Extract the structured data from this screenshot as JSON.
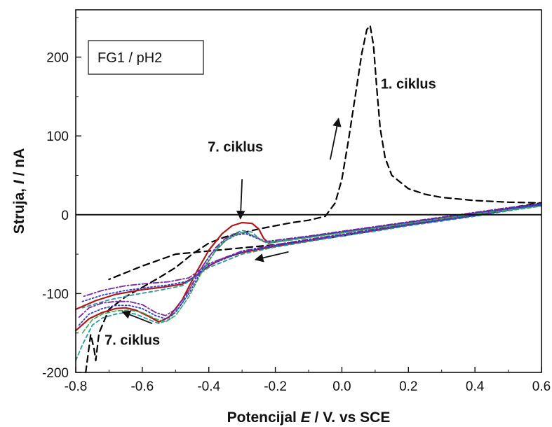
{
  "chart_data": {
    "type": "line",
    "xlabel_parts": [
      "Potencijal ",
      "E",
      " / V. vs SCE"
    ],
    "ylabel_parts": [
      "Struja, ",
      "I",
      " /  nA"
    ],
    "xlim": [
      -0.8,
      0.6
    ],
    "ylim": [
      -200,
      260
    ],
    "xticks": [
      -0.8,
      -0.6,
      -0.4,
      -0.2,
      0.0,
      0.2,
      0.4,
      0.6
    ],
    "xtick_labels": [
      "-0.8",
      "-0.6",
      "-0.4",
      "-0.2",
      "0.0",
      "0.2",
      "0.4",
      "0.6"
    ],
    "yticks": [
      -200,
      -100,
      0,
      100,
      200
    ],
    "ytick_labels": [
      "-200",
      "-100",
      "0",
      "100",
      "200"
    ],
    "zero_line": true,
    "legend_box": "FG1 / pH2",
    "annotations": [
      {
        "text": "1. ciklus",
        "x": 0.2,
        "y": 160
      },
      {
        "text": "7. ciklus",
        "x": -0.32,
        "y": 80
      },
      {
        "text": "7. ciklus",
        "x": -0.63,
        "y": -165
      }
    ],
    "arrows": [
      {
        "from": [
          -0.3,
          45
        ],
        "to": [
          -0.305,
          -5
        ]
      },
      {
        "from": [
          -0.035,
          70
        ],
        "to": [
          -0.01,
          122
        ]
      },
      {
        "from": [
          -0.16,
          -47
        ],
        "to": [
          -0.26,
          -57
        ]
      },
      {
        "from": [
          -0.57,
          -138
        ],
        "to": [
          -0.66,
          -123
        ]
      }
    ],
    "series": [
      {
        "color": "#000000",
        "dash": "9,6",
        "width": 2.2,
        "points": [
          [
            -0.77,
            -200
          ],
          [
            -0.755,
            -152
          ],
          [
            -0.745,
            -170
          ],
          [
            -0.74,
            -185
          ],
          [
            -0.73,
            -150
          ],
          [
            -0.7,
            -120
          ],
          [
            -0.65,
            -104
          ],
          [
            -0.6,
            -92
          ],
          [
            -0.55,
            -80
          ],
          [
            -0.5,
            -67
          ],
          [
            -0.45,
            -50
          ],
          [
            -0.4,
            -36
          ],
          [
            -0.35,
            -28
          ],
          [
            -0.3,
            -23
          ],
          [
            -0.25,
            -18
          ],
          [
            -0.2,
            -14
          ],
          [
            -0.15,
            -10
          ],
          [
            -0.1,
            -7
          ],
          [
            -0.05,
            -2
          ],
          [
            -0.02,
            15
          ],
          [
            0.0,
            45
          ],
          [
            0.02,
            95
          ],
          [
            0.04,
            150
          ],
          [
            0.06,
            205
          ],
          [
            0.075,
            235
          ],
          [
            0.085,
            240
          ],
          [
            0.095,
            215
          ],
          [
            0.105,
            160
          ],
          [
            0.115,
            110
          ],
          [
            0.13,
            72
          ],
          [
            0.15,
            50
          ],
          [
            0.2,
            33
          ],
          [
            0.25,
            26
          ],
          [
            0.3,
            22
          ],
          [
            0.4,
            18
          ],
          [
            0.5,
            16
          ],
          [
            0.6,
            15
          ],
          [
            0.55,
            12
          ],
          [
            0.5,
            8
          ],
          [
            0.4,
            2
          ],
          [
            0.3,
            -5
          ],
          [
            0.2,
            -12
          ],
          [
            0.1,
            -20
          ],
          [
            0.0,
            -27
          ],
          [
            -0.1,
            -33
          ],
          [
            -0.2,
            -38
          ],
          [
            -0.3,
            -42
          ],
          [
            -0.4,
            -46
          ],
          [
            -0.5,
            -50
          ],
          [
            -0.6,
            -65
          ],
          [
            -0.7,
            -82
          ]
        ]
      },
      {
        "color": "#b01818",
        "dash": "",
        "width": 2.2,
        "points": [
          [
            -0.8,
            -147
          ],
          [
            -0.76,
            -132
          ],
          [
            -0.72,
            -124
          ],
          [
            -0.68,
            -119
          ],
          [
            -0.65,
            -118
          ],
          [
            -0.62,
            -121
          ],
          [
            -0.58,
            -129
          ],
          [
            -0.55,
            -136
          ],
          [
            -0.52,
            -130
          ],
          [
            -0.48,
            -108
          ],
          [
            -0.44,
            -75
          ],
          [
            -0.4,
            -45
          ],
          [
            -0.36,
            -24
          ],
          [
            -0.33,
            -14
          ],
          [
            -0.3,
            -10
          ],
          [
            -0.27,
            -11
          ],
          [
            -0.25,
            -18
          ],
          [
            -0.235,
            -30
          ],
          [
            -0.22,
            -36
          ],
          [
            -0.18,
            -33
          ],
          [
            -0.1,
            -28
          ],
          [
            0.0,
            -22
          ],
          [
            0.1,
            -16
          ],
          [
            0.2,
            -10
          ],
          [
            0.3,
            -4
          ],
          [
            0.4,
            2
          ],
          [
            0.5,
            7
          ],
          [
            0.6,
            12
          ],
          [
            0.55,
            10
          ],
          [
            0.5,
            6
          ],
          [
            0.4,
            -1
          ],
          [
            0.3,
            -7
          ],
          [
            0.2,
            -13
          ],
          [
            0.1,
            -20
          ],
          [
            0.0,
            -26
          ],
          [
            -0.1,
            -33
          ],
          [
            -0.2,
            -40
          ],
          [
            -0.3,
            -48
          ],
          [
            -0.36,
            -56
          ],
          [
            -0.4,
            -65
          ],
          [
            -0.44,
            -78
          ],
          [
            -0.48,
            -88
          ],
          [
            -0.54,
            -92
          ],
          [
            -0.6,
            -95
          ],
          [
            -0.68,
            -101
          ],
          [
            -0.74,
            -109
          ],
          [
            -0.8,
            -120
          ]
        ]
      },
      {
        "color": "#2a9a9a",
        "dash": "5,4",
        "width": 1.8,
        "points": [
          [
            -0.8,
            -185
          ],
          [
            -0.78,
            -165
          ],
          [
            -0.75,
            -140
          ],
          [
            -0.72,
            -131
          ],
          [
            -0.68,
            -126
          ],
          [
            -0.65,
            -124
          ],
          [
            -0.62,
            -126
          ],
          [
            -0.58,
            -133
          ],
          [
            -0.55,
            -138
          ],
          [
            -0.52,
            -133
          ],
          [
            -0.48,
            -112
          ],
          [
            -0.44,
            -80
          ],
          [
            -0.4,
            -53
          ],
          [
            -0.36,
            -35
          ],
          [
            -0.33,
            -25
          ],
          [
            -0.3,
            -20
          ],
          [
            -0.27,
            -22
          ],
          [
            -0.25,
            -30
          ],
          [
            -0.22,
            -36
          ],
          [
            -0.1,
            -29
          ],
          [
            0.0,
            -23
          ],
          [
            0.1,
            -17
          ],
          [
            0.2,
            -11
          ],
          [
            0.3,
            -5
          ],
          [
            0.4,
            1
          ],
          [
            0.5,
            6
          ],
          [
            0.6,
            11
          ],
          [
            0.5,
            5
          ],
          [
            0.4,
            -2
          ],
          [
            0.3,
            -8
          ],
          [
            0.2,
            -14
          ],
          [
            0.1,
            -21
          ],
          [
            0.0,
            -27
          ],
          [
            -0.1,
            -34
          ],
          [
            -0.2,
            -41
          ],
          [
            -0.3,
            -50
          ],
          [
            -0.4,
            -67
          ],
          [
            -0.48,
            -90
          ],
          [
            -0.55,
            -96
          ],
          [
            -0.62,
            -101
          ],
          [
            -0.7,
            -108
          ],
          [
            -0.78,
            -118
          ]
        ]
      },
      {
        "color": "#7a2a9a",
        "dash": "8,3,2,3",
        "width": 1.8,
        "points": [
          [
            -0.79,
            -130
          ],
          [
            -0.76,
            -118
          ],
          [
            -0.72,
            -112
          ],
          [
            -0.68,
            -110
          ],
          [
            -0.64,
            -110
          ],
          [
            -0.6,
            -114
          ],
          [
            -0.56,
            -124
          ],
          [
            -0.53,
            -128
          ],
          [
            -0.5,
            -120
          ],
          [
            -0.46,
            -96
          ],
          [
            -0.42,
            -66
          ],
          [
            -0.38,
            -42
          ],
          [
            -0.35,
            -30
          ],
          [
            -0.32,
            -24
          ],
          [
            -0.29,
            -22
          ],
          [
            -0.26,
            -28
          ],
          [
            -0.23,
            -34
          ],
          [
            -0.1,
            -27
          ],
          [
            0.0,
            -21
          ],
          [
            0.1,
            -15
          ],
          [
            0.2,
            -9
          ],
          [
            0.3,
            -3
          ],
          [
            0.4,
            3
          ],
          [
            0.5,
            9
          ],
          [
            0.6,
            14
          ],
          [
            0.5,
            7
          ],
          [
            0.4,
            0
          ],
          [
            0.3,
            -6
          ],
          [
            0.2,
            -12
          ],
          [
            0.1,
            -18
          ],
          [
            0.0,
            -25
          ],
          [
            -0.1,
            -31
          ],
          [
            -0.2,
            -38
          ],
          [
            -0.3,
            -46
          ],
          [
            -0.4,
            -62
          ],
          [
            -0.46,
            -80
          ],
          [
            -0.52,
            -85
          ],
          [
            -0.58,
            -87
          ],
          [
            -0.65,
            -90
          ],
          [
            -0.72,
            -96
          ],
          [
            -0.78,
            -104
          ]
        ]
      },
      {
        "color": "#2a3ad8",
        "dash": "2,3",
        "width": 1.8,
        "points": [
          [
            -0.79,
            -140
          ],
          [
            -0.76,
            -126
          ],
          [
            -0.72,
            -119
          ],
          [
            -0.68,
            -115
          ],
          [
            -0.64,
            -115
          ],
          [
            -0.6,
            -119
          ],
          [
            -0.56,
            -128
          ],
          [
            -0.53,
            -132
          ],
          [
            -0.5,
            -124
          ],
          [
            -0.46,
            -100
          ],
          [
            -0.42,
            -70
          ],
          [
            -0.38,
            -46
          ],
          [
            -0.35,
            -33
          ],
          [
            -0.32,
            -26
          ],
          [
            -0.29,
            -24
          ],
          [
            -0.26,
            -29
          ],
          [
            -0.23,
            -35
          ],
          [
            -0.1,
            -28
          ],
          [
            0.0,
            -22
          ],
          [
            0.1,
            -16
          ],
          [
            0.2,
            -10
          ],
          [
            0.3,
            -4
          ],
          [
            0.4,
            2
          ],
          [
            0.5,
            8
          ],
          [
            0.6,
            13
          ],
          [
            0.5,
            6
          ],
          [
            0.4,
            -1
          ],
          [
            0.3,
            -7
          ],
          [
            0.2,
            -13
          ],
          [
            0.1,
            -19
          ],
          [
            0.0,
            -26
          ],
          [
            -0.1,
            -32
          ],
          [
            -0.2,
            -39
          ],
          [
            -0.3,
            -47
          ],
          [
            -0.4,
            -64
          ],
          [
            -0.46,
            -84
          ],
          [
            -0.52,
            -89
          ],
          [
            -0.58,
            -92
          ],
          [
            -0.65,
            -96
          ],
          [
            -0.72,
            -102
          ],
          [
            -0.78,
            -110
          ]
        ]
      },
      {
        "color": "#3aaa5a",
        "dash": "6,3",
        "width": 1.6,
        "points": [
          [
            -0.78,
            -150
          ],
          [
            -0.75,
            -133
          ],
          [
            -0.72,
            -126
          ],
          [
            -0.68,
            -122
          ],
          [
            -0.64,
            -121
          ],
          [
            -0.6,
            -124
          ],
          [
            -0.56,
            -132
          ],
          [
            -0.53,
            -136
          ],
          [
            -0.5,
            -128
          ],
          [
            -0.46,
            -104
          ],
          [
            -0.42,
            -72
          ],
          [
            -0.38,
            -46
          ],
          [
            -0.35,
            -33
          ],
          [
            -0.32,
            -25
          ],
          [
            -0.29,
            -22
          ],
          [
            -0.26,
            -28
          ],
          [
            -0.23,
            -35
          ],
          [
            -0.1,
            -29
          ],
          [
            0.0,
            -23
          ],
          [
            0.1,
            -17
          ],
          [
            0.2,
            -11
          ],
          [
            0.3,
            -5
          ],
          [
            0.4,
            1
          ],
          [
            0.5,
            6
          ],
          [
            0.6,
            11
          ]
        ]
      }
    ]
  }
}
